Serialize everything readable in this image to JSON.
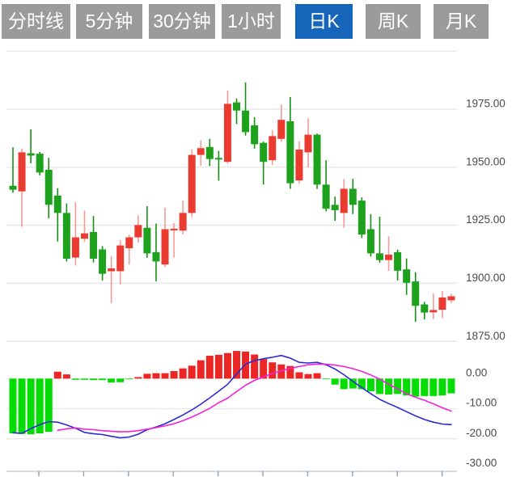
{
  "tabbar": {
    "tabs": [
      {
        "label": "分时线",
        "active": false
      },
      {
        "label": "5分钟",
        "active": false
      },
      {
        "label": "30分钟",
        "active": false
      },
      {
        "label": "1小时",
        "active": false
      },
      {
        "label": "日K",
        "active": true
      },
      {
        "label": "周K",
        "active": false
      },
      {
        "label": "月K",
        "active": false
      }
    ]
  },
  "colors": {
    "tab_bg": "#9b9b9b",
    "tab_active_bg": "#1565bb",
    "tab_text": "#ffffff",
    "up_body": "#eb3a30",
    "up_wick": "#f59b95",
    "down_body": "#1ea21e",
    "down_wick": "#149114",
    "macd_up": "#ec2525",
    "macd_down": "#04dd04",
    "dif_line": "#2b2bd5",
    "dea_line": "#f324d8",
    "grid": "#e9e9e9",
    "axis": "#c4cdd8",
    "tick": "#8fa0b8",
    "label": "#4a4a4a",
    "background": "#ffffff"
  },
  "chart_data": {
    "type": "candlestick",
    "title": "",
    "legend_position": "none",
    "grid": true,
    "price_axis": {
      "side": "right",
      "gridline_values": [
        2000,
        1975,
        1950,
        1925,
        1900,
        1875
      ],
      "labeled_values": [
        1975,
        1950,
        1925,
        1900,
        1875
      ],
      "labels": [
        "1975.00",
        "1950.00",
        "1925.00",
        "1900.00",
        "1875.00"
      ],
      "ylim": [
        1872,
        2000
      ]
    },
    "candles_ohlc": [
      [
        1942.0,
        1958.5,
        1939.0,
        1940.3
      ],
      [
        1939.6,
        1958.0,
        1924.3,
        1956.4
      ],
      [
        1956.0,
        1966.3,
        1951.7,
        1955.0
      ],
      [
        1955.8,
        1956.5,
        1946.5,
        1947.7
      ],
      [
        1948.9,
        1954.0,
        1928.0,
        1933.8
      ],
      [
        1937.8,
        1941.0,
        1918.0,
        1930.3
      ],
      [
        1930.3,
        1934.4,
        1909.4,
        1910.6
      ],
      [
        1911.1,
        1935.0,
        1907.6,
        1919.8
      ],
      [
        1919.2,
        1931.3,
        1917.8,
        1921.5
      ],
      [
        1922.1,
        1929.0,
        1909.0,
        1910.6
      ],
      [
        1914.6,
        1916.0,
        1901.2,
        1904.1
      ],
      [
        1905.2,
        1911.6,
        1891.4,
        1906.4
      ],
      [
        1905.2,
        1918.6,
        1899.5,
        1916.3
      ],
      [
        1915.1,
        1920.9,
        1908.1,
        1919.8
      ],
      [
        1919.8,
        1929.2,
        1917.5,
        1925.1
      ],
      [
        1923.9,
        1933.2,
        1911.0,
        1912.9
      ],
      [
        1913.4,
        1925.7,
        1900.8,
        1909.4
      ],
      [
        1908.1,
        1932.6,
        1907.0,
        1923.3
      ],
      [
        1922.8,
        1925.9,
        1911.1,
        1923.5
      ],
      [
        1922.7,
        1935.6,
        1921.0,
        1930.3
      ],
      [
        1930.3,
        1957.6,
        1928.5,
        1955.3
      ],
      [
        1955.3,
        1961.6,
        1950.6,
        1958.2
      ],
      [
        1958.7,
        1962.2,
        1950.5,
        1953.5
      ],
      [
        1954.0,
        1957.0,
        1944.2,
        1953.3
      ],
      [
        1952.3,
        1983.1,
        1951.5,
        1977.3
      ],
      [
        1977.9,
        1979.6,
        1968.6,
        1974.4
      ],
      [
        1974.4,
        1986.5,
        1963.6,
        1965.1
      ],
      [
        1968.0,
        1971.5,
        1958.0,
        1959.9
      ],
      [
        1960.5,
        1961.0,
        1942.5,
        1952.3
      ],
      [
        1953.0,
        1966.0,
        1951.0,
        1963.4
      ],
      [
        1962.2,
        1977.0,
        1961.0,
        1970.4
      ],
      [
        1969.8,
        1980.2,
        1940.7,
        1943.1
      ],
      [
        1944.3,
        1961.1,
        1943.0,
        1957.6
      ],
      [
        1956.4,
        1971.0,
        1950.0,
        1964.0
      ],
      [
        1964.0,
        1964.5,
        1940.7,
        1942.5
      ],
      [
        1942.5,
        1953.0,
        1931.0,
        1932.1
      ],
      [
        1933.8,
        1937.3,
        1926.9,
        1931.5
      ],
      [
        1930.3,
        1944.9,
        1923.9,
        1940.7
      ],
      [
        1940.7,
        1945.0,
        1929.8,
        1933.8
      ],
      [
        1935.6,
        1937.0,
        1919.5,
        1921.0
      ],
      [
        1923.3,
        1929.8,
        1911.5,
        1912.9
      ],
      [
        1912.9,
        1928.7,
        1908.9,
        1910.0
      ],
      [
        1910.0,
        1920.2,
        1905.4,
        1912.3
      ],
      [
        1913.4,
        1914.5,
        1901.2,
        1905.4
      ],
      [
        1906.0,
        1910.7,
        1895.0,
        1900.2
      ],
      [
        1900.8,
        1904.8,
        1883.4,
        1890.3
      ],
      [
        1890.9,
        1892.0,
        1884.5,
        1887.4
      ],
      [
        1887.5,
        1895.6,
        1884.5,
        1888.5
      ],
      [
        1888.6,
        1896.7,
        1885.0,
        1893.9
      ],
      [
        1892.7,
        1895.5,
        1891.5,
        1894.4
      ]
    ],
    "macd": {
      "axis_labels": [
        "0.00",
        "-10.00",
        "-20.00",
        "-30.00"
      ],
      "axis_values": [
        0,
        -10,
        -20,
        -30
      ],
      "ylim": [
        -31,
        9
      ],
      "hist": [
        -18.2,
        -18.4,
        -18.5,
        -18.2,
        -17.7,
        2.3,
        1.4,
        -0.4,
        -0.4,
        -0.5,
        -0.5,
        -1.3,
        -1.2,
        -0.05,
        0.5,
        1.6,
        1.8,
        1.8,
        2.5,
        3.4,
        4.3,
        6.1,
        7.6,
        7.9,
        8.5,
        9.2,
        9.0,
        8.0,
        6.5,
        5.4,
        4.7,
        4.2,
        2.1,
        1.5,
        1.8,
        -0.05,
        -2.0,
        -3.5,
        -3.3,
        -3.5,
        -4.2,
        -5.1,
        -5.3,
        -5.1,
        -5.6,
        -6.0,
        -5.8,
        -5.8,
        -5.6,
        -4.9
      ],
      "dif": [
        -18.0,
        -18.2,
        -16.6,
        -15.3,
        -14.3,
        -14.5,
        -15.4,
        -16.5,
        -17.9,
        -18.3,
        -18.6,
        -19.2,
        -19.7,
        -19.4,
        -18.5,
        -17.0,
        -16.1,
        -15.0,
        -13.6,
        -12.1,
        -10.4,
        -8.5,
        -6.4,
        -4.2,
        -1.9,
        1.5,
        4.8,
        6.0,
        6.6,
        7.1,
        7.7,
        6.8,
        5.4,
        5.2,
        5.4,
        4.6,
        3.2,
        1.3,
        -0.9,
        -3.0,
        -5.0,
        -6.9,
        -8.3,
        -9.6,
        -11.0,
        -12.4,
        -13.6,
        -14.5,
        -15.1,
        -15.3
      ],
      "dea": [
        null,
        null,
        null,
        null,
        null,
        -17.2,
        -16.7,
        -16.4,
        -16.8,
        -17.0,
        -17.3,
        -17.5,
        -17.7,
        -17.6,
        -17.3,
        -16.8,
        -16.3,
        -15.7,
        -15.0,
        -14.0,
        -12.8,
        -11.4,
        -9.9,
        -8.0,
        -6.5,
        -4.3,
        -2.2,
        -0.6,
        0.6,
        1.7,
        2.6,
        3.4,
        4.0,
        4.6,
        4.8,
        4.8,
        4.5,
        4.0,
        3.3,
        2.4,
        1.2,
        -0.2,
        -1.9,
        -3.4,
        -5.0,
        -6.2,
        -7.2,
        -8.4,
        -9.7,
        -10.8
      ]
    }
  }
}
